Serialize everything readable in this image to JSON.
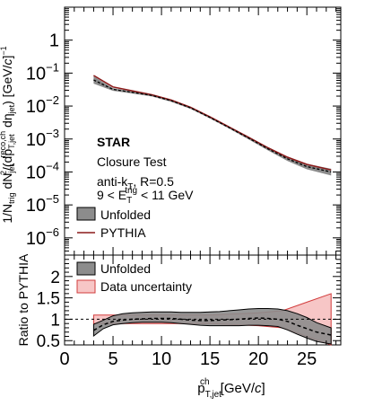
{
  "chart_data": [
    {
      "panel": "top",
      "type": "line",
      "ylabel_parts": [
        "1/N",
        "trig",
        " dN",
        "jet",
        "2",
        "/(dp",
        "T,jet",
        "reco,ch",
        " dη",
        "jet",
        ") [GeV/",
        "c",
        "]",
        "−1"
      ],
      "y_scale": "log",
      "ylim": [
        3e-07,
        10
      ],
      "y_ticks": [
        1e-06,
        1e-05,
        0.0001,
        0.001,
        0.01,
        0.1,
        1
      ],
      "y_tick_labels": [
        {
          "base": "10",
          "exp": "−6"
        },
        {
          "base": "10",
          "exp": "−5"
        },
        {
          "base": "10",
          "exp": "−4"
        },
        {
          "base": "10",
          "exp": "−3"
        },
        {
          "base": "10",
          "exp": "−2"
        },
        {
          "base": "10",
          "exp": "−1"
        },
        {
          "base": "1",
          "exp": ""
        }
      ],
      "xlim": [
        0,
        28.5
      ],
      "annotations": {
        "experiment": "STAR",
        "closure": "Closure Test",
        "algo_parts": [
          "anti-k",
          "T",
          ", R=0.5"
        ],
        "trigger_parts": [
          "9 < E",
          "T",
          "trig",
          " < 11 GeV"
        ]
      },
      "legend": [
        {
          "label": "Unfolded",
          "style": "band",
          "color": "#8c8c8c"
        },
        {
          "label": "PYTHIA",
          "style": "line",
          "color": "#8b1a1a"
        }
      ],
      "series": [
        {
          "name": "Unfolded",
          "role": "central",
          "x": [
            3,
            5,
            7,
            9,
            11,
            13,
            15,
            17,
            19,
            21,
            23,
            25,
            27.5
          ],
          "values": [
            0.062,
            0.032,
            0.026,
            0.021,
            0.0145,
            0.0088,
            0.0045,
            0.0022,
            0.00106,
            0.0005,
            0.00025,
            0.000145,
            0.0001
          ]
        },
        {
          "name": "Unfolded",
          "role": "band_upper",
          "x": [
            3,
            5,
            7,
            9,
            11,
            13,
            15,
            17,
            19,
            21,
            23,
            25,
            27.5
          ],
          "values": [
            0.08,
            0.035,
            0.028,
            0.0225,
            0.0156,
            0.0094,
            0.0048,
            0.0024,
            0.00118,
            0.00057,
            0.00029,
            0.000175,
            0.000125
          ]
        },
        {
          "name": "Unfolded",
          "role": "band_lower",
          "x": [
            3,
            5,
            7,
            9,
            11,
            13,
            15,
            17,
            19,
            21,
            23,
            25,
            27.5
          ],
          "values": [
            0.048,
            0.029,
            0.024,
            0.0195,
            0.0134,
            0.0082,
            0.0042,
            0.00205,
            0.00097,
            0.00045,
            0.000215,
            0.00012,
            7.8e-05
          ]
        },
        {
          "name": "PYTHIA",
          "x": [
            3,
            5,
            7,
            9,
            11,
            13,
            15,
            17,
            19,
            21,
            23,
            25,
            27.5
          ],
          "values": [
            0.085,
            0.038,
            0.029,
            0.022,
            0.0152,
            0.0092,
            0.0047,
            0.0023,
            0.00112,
            0.00054,
            0.00028,
            0.00017,
            0.000115
          ]
        }
      ]
    },
    {
      "panel": "bottom",
      "type": "line",
      "ylabel": "Ratio to PYTHIA",
      "xlabel_parts": [
        "p",
        "T,jet",
        "ch",
        " [GeV/",
        "c",
        "]"
      ],
      "xlim": [
        0,
        28.5
      ],
      "x_ticks": [
        0,
        5,
        10,
        15,
        20,
        25
      ],
      "ylim": [
        0.4,
        2.5
      ],
      "y_ticks": [
        0.5,
        1,
        1.5,
        2
      ],
      "y_tick_labels": [
        "0.5",
        "1",
        "1.5",
        "2"
      ],
      "reference_line": 1,
      "legend": [
        {
          "label": "Unfolded",
          "style": "band",
          "color": "#8c8c8c"
        },
        {
          "label": "Data uncertainty",
          "style": "band",
          "color": "#f7c6c6"
        }
      ],
      "series": [
        {
          "name": "Data uncertainty",
          "role": "band_upper",
          "x": [
            3,
            5,
            10,
            15,
            20,
            22.5,
            25,
            27.5
          ],
          "values": [
            1.1,
            1.1,
            1.1,
            1.1,
            1.15,
            1.2,
            1.4,
            1.6
          ]
        },
        {
          "name": "Data uncertainty",
          "role": "band_lower",
          "x": [
            3,
            5,
            10,
            15,
            20,
            22.5,
            25,
            27.5
          ],
          "values": [
            0.9,
            0.9,
            0.9,
            0.9,
            0.85,
            0.8,
            0.6,
            0.4
          ]
        },
        {
          "name": "Unfolded",
          "role": "band_upper",
          "x": [
            3,
            4,
            5,
            6,
            7,
            8,
            9,
            10,
            11,
            12,
            13,
            14,
            15,
            16,
            17,
            18,
            19,
            20,
            21,
            22,
            23,
            24,
            25,
            26,
            27.5
          ],
          "values": [
            0.88,
            0.98,
            1.08,
            1.13,
            1.15,
            1.16,
            1.17,
            1.17,
            1.17,
            1.16,
            1.16,
            1.16,
            1.17,
            1.18,
            1.2,
            1.22,
            1.24,
            1.25,
            1.25,
            1.24,
            1.2,
            1.13,
            1.04,
            0.92,
            0.8
          ]
        },
        {
          "name": "Unfolded",
          "role": "central",
          "x": [
            3,
            4,
            5,
            6,
            7,
            8,
            9,
            10,
            11,
            12,
            13,
            14,
            15,
            16,
            17,
            18,
            19,
            20,
            21,
            22,
            23,
            24,
            25,
            26,
            27.5
          ],
          "values": [
            0.74,
            0.87,
            0.95,
            0.98,
            1.0,
            1.01,
            1.02,
            1.02,
            1.02,
            1.0,
            0.98,
            0.97,
            0.97,
            0.98,
            0.99,
            1.0,
            1.02,
            1.03,
            1.02,
            1.0,
            0.95,
            0.86,
            0.78,
            0.7,
            0.63
          ]
        },
        {
          "name": "Unfolded",
          "role": "band_lower",
          "x": [
            3,
            4,
            5,
            6,
            7,
            8,
            9,
            10,
            11,
            12,
            13,
            14,
            15,
            16,
            17,
            18,
            19,
            20,
            21,
            22,
            23,
            24,
            25,
            26,
            27.5
          ],
          "values": [
            0.61,
            0.78,
            0.87,
            0.9,
            0.92,
            0.93,
            0.93,
            0.93,
            0.92,
            0.9,
            0.88,
            0.86,
            0.85,
            0.85,
            0.85,
            0.85,
            0.86,
            0.86,
            0.85,
            0.83,
            0.75,
            0.65,
            0.56,
            0.48,
            0.42
          ]
        }
      ]
    }
  ]
}
